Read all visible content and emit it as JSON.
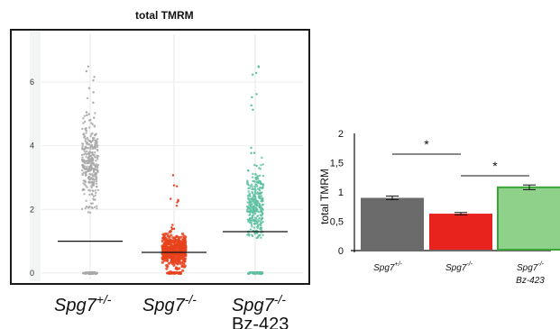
{
  "chart_data": [
    {
      "type": "scatter",
      "title": "total TMRM",
      "ylim": [
        -0.2,
        7.5
      ],
      "yticks": [
        0,
        2,
        4,
        6
      ],
      "categories": [
        {
          "name": "Spg7",
          "sup": "+/-",
          "sub": ""
        },
        {
          "name": "Spg7",
          "sup": "-/-",
          "sub": ""
        },
        {
          "name": "Spg7",
          "sup": "-/-",
          "sub": "Bz-423"
        }
      ],
      "colors": [
        "#a8a8a8",
        "#e8421c",
        "#5cbfa0"
      ],
      "means": [
        1.0,
        0.65,
        1.3
      ],
      "point_ranges": [
        [
          0.85,
          7.1
        ],
        [
          0.0,
          1.35
        ],
        [
          1.1,
          6.5
        ]
      ],
      "point_centers": [
        3.4,
        0.7,
        2.1
      ],
      "zero_cluster": [
        true,
        true,
        true
      ],
      "grid": true
    },
    {
      "type": "bar",
      "ylabel": "total TMRM",
      "ylim": [
        0,
        2
      ],
      "yticks": [
        "0",
        "0,5",
        "1",
        "1,5",
        "2"
      ],
      "ytick_values": [
        0,
        0.5,
        1,
        1.5,
        2
      ],
      "categories": [
        {
          "name": "Spg7",
          "sup": "+/-",
          "sub": ""
        },
        {
          "name": "Spg7",
          "sup": "-/-",
          "sub": ""
        },
        {
          "name": "Spg7",
          "sup": "-/-",
          "sub": "Bz-423"
        }
      ],
      "values": [
        0.9,
        0.63,
        1.08
      ],
      "errors": [
        0.03,
        0.02,
        0.04
      ],
      "colors": [
        "#6b6b6b",
        "#e8221c",
        "#8fd08a"
      ],
      "significance": [
        {
          "pair": [
            0,
            1
          ],
          "label": "*"
        },
        {
          "pair": [
            1,
            2
          ],
          "label": "*"
        }
      ]
    }
  ]
}
